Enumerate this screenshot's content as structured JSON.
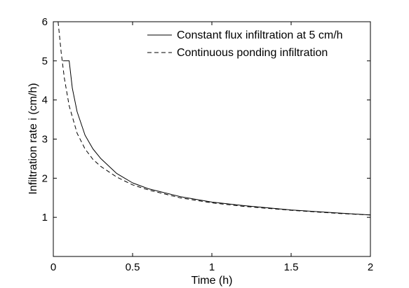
{
  "chart_data": {
    "type": "line",
    "title": "",
    "xlabel": "Time (h)",
    "ylabel": "Infiltration rate i (cm/h)",
    "xlim": [
      0,
      2
    ],
    "ylim": [
      0,
      6
    ],
    "xticks": [
      0,
      0.5,
      1,
      1.5,
      2
    ],
    "yticks": [
      1,
      2,
      3,
      4,
      5,
      6
    ],
    "xtick_labels": [
      "0",
      "0.5",
      "1",
      "1.5",
      "2"
    ],
    "ytick_labels": [
      "1",
      "2",
      "3",
      "4",
      "5",
      "6"
    ],
    "grid": false,
    "legend_position": "top-right",
    "series": [
      {
        "name": "Constant flux infiltration at 5 cm/h",
        "style": "solid",
        "color": "#000000",
        "x": [
          0.06,
          0.1,
          0.12,
          0.15,
          0.2,
          0.25,
          0.3,
          0.4,
          0.5,
          0.6,
          0.8,
          1.0,
          1.2,
          1.5,
          1.8,
          2.0
        ],
        "y": [
          5.0,
          5.0,
          4.3,
          3.7,
          3.1,
          2.75,
          2.5,
          2.12,
          1.88,
          1.73,
          1.53,
          1.39,
          1.3,
          1.19,
          1.11,
          1.06
        ]
      },
      {
        "name": "Continuous ponding infiltration",
        "style": "dashed",
        "color": "#000000",
        "x": [
          0.03,
          0.05,
          0.07,
          0.1,
          0.15,
          0.2,
          0.25,
          0.3,
          0.4,
          0.5,
          0.6,
          0.8,
          1.0,
          1.2,
          1.5,
          1.8,
          2.0
        ],
        "y": [
          6.0,
          5.2,
          4.55,
          3.85,
          3.15,
          2.75,
          2.48,
          2.3,
          2.03,
          1.83,
          1.7,
          1.5,
          1.37,
          1.28,
          1.18,
          1.1,
          1.06
        ]
      }
    ]
  }
}
